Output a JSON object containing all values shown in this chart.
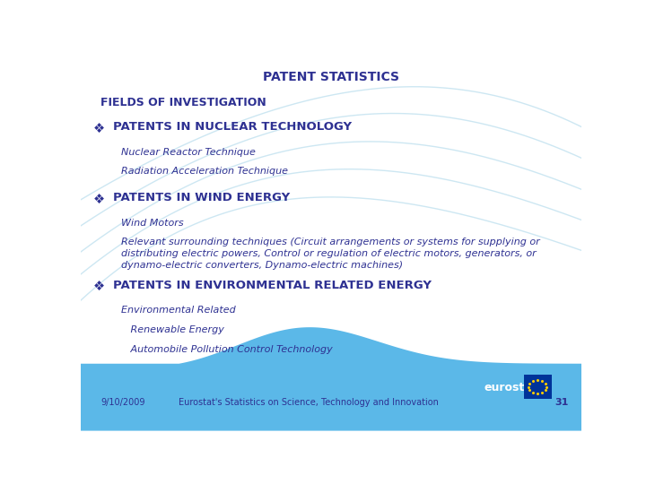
{
  "title": "PATENT STATISTICS",
  "title_color": "#2E3192",
  "title_fontsize": 10,
  "bg_color": "#FFFFFF",
  "footer_bg_color": "#5BB8E8",
  "footer_text": "Eurostat's Statistics on Science, Technology and Innovation",
  "footer_date": "9/10/2009",
  "footer_page": "31",
  "section_header": "FIELDS OF INVESTIGATION",
  "section_header_color": "#2E3192",
  "section_header_fontsize": 9,
  "bullet_color": "#2E3192",
  "items": [
    {
      "header": "PATENTS IN NUCLEAR TECHNOLOGY",
      "header_fontsize": 9.5,
      "subitems": [
        "Nuclear Reactor Technique",
        "Radiation Acceleration Technique"
      ],
      "subitem_indent": 0.08,
      "subitem_fontsize": 8
    },
    {
      "header": "PATENTS IN WIND ENERGY",
      "header_fontsize": 9.5,
      "subitems": [
        "Wind Motors",
        "Relevant surrounding techniques (Circuit arrangements or systems for supplying or\ndistributing electric powers, Control or regulation of electric motors, generators, or\ndynamo-electric converters, Dynamo-electric machines)"
      ],
      "subitem_indent": 0.08,
      "subitem_fontsize": 8
    },
    {
      "header": "PATENTS IN ENVIRONMENTAL RELATED ENERGY",
      "header_fontsize": 9.5,
      "subitems": [
        "Environmental Related",
        "   Renewable Energy",
        "   Automobile Pollution Control Technology"
      ],
      "subitem_indent": 0.08,
      "subitem_fontsize": 8
    }
  ],
  "curve_color": "#B8DDED",
  "curve_alpha": 0.7,
  "footer_wave_color": "#7BC8E8"
}
